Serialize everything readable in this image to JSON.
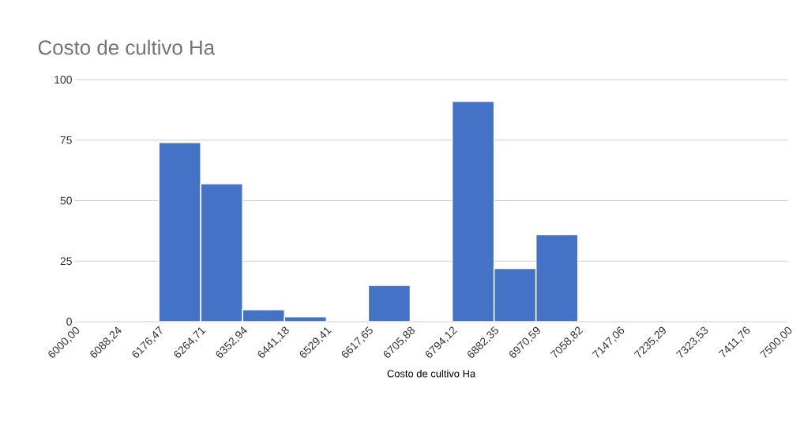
{
  "chart_data": {
    "type": "histogram",
    "title": "Costo de cultivo Ha",
    "xlabel": "Costo de cultivo Ha",
    "bins": [
      6000.0,
      6088.24,
      6176.47,
      6264.71,
      6352.94,
      6441.18,
      6529.41,
      6617.65,
      6705.88,
      6794.12,
      6882.35,
      6970.59,
      7058.82,
      7147.06,
      7235.29,
      7323.53,
      7411.76,
      7500.0
    ],
    "values": [
      0,
      0,
      74,
      57,
      5,
      2,
      0,
      15,
      0,
      91,
      22,
      36,
      0,
      0,
      0,
      0,
      0
    ],
    "color": "#4472c4",
    "xlim": [
      6000,
      7500
    ],
    "xticks": [
      {
        "value": 6000.0,
        "label": "6000,00"
      },
      {
        "value": 6088.24,
        "label": "6088,24"
      },
      {
        "value": 6176.47,
        "label": "6176,47"
      },
      {
        "value": 6264.71,
        "label": "6264,71"
      },
      {
        "value": 6352.94,
        "label": "6352,94"
      },
      {
        "value": 6441.18,
        "label": "6441,18"
      },
      {
        "value": 6529.41,
        "label": "6529,41"
      },
      {
        "value": 6617.65,
        "label": "6617,65"
      },
      {
        "value": 6705.88,
        "label": "6705,88"
      },
      {
        "value": 6794.12,
        "label": "6794,12"
      },
      {
        "value": 6882.35,
        "label": "6882,35"
      },
      {
        "value": 6970.59,
        "label": "6970,59"
      },
      {
        "value": 7058.82,
        "label": "7058,82"
      },
      {
        "value": 7147.06,
        "label": "7147,06"
      },
      {
        "value": 7235.29,
        "label": "7235,29"
      },
      {
        "value": 7323.53,
        "label": "7323,53"
      },
      {
        "value": 7411.76,
        "label": "7411,76"
      },
      {
        "value": 7500.0,
        "label": "7500,00"
      }
    ],
    "ylim": [
      0,
      100
    ],
    "yticks": [
      0,
      25,
      50,
      75,
      100
    ],
    "grid": "y"
  }
}
